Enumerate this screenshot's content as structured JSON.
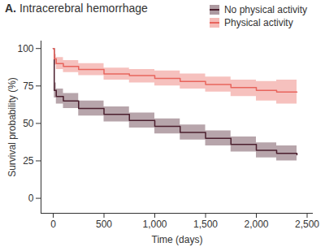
{
  "chart_data": {
    "type": "survival",
    "title": "A. Intracerebral hemorrhage",
    "x_label": "Time (days)",
    "y_label": "Survival probability (%)",
    "x": [
      0,
      10,
      30,
      100,
      250,
      500,
      750,
      1000,
      1250,
      1500,
      1750,
      2000,
      2200,
      2400
    ],
    "series": [
      {
        "name": "No physical activity",
        "color": "#4b1f2e",
        "values": [
          100,
          72,
          68,
          65,
          60,
          56,
          52,
          48,
          44,
          40,
          36,
          32,
          30,
          29
        ],
        "lower": [
          100,
          67,
          63,
          60,
          55,
          51,
          47,
          43,
          39,
          35,
          31,
          27,
          25,
          24
        ],
        "upper": [
          100,
          77,
          73,
          70,
          65,
          61,
          57,
          53,
          49,
          45,
          41,
          37,
          35,
          35
        ]
      },
      {
        "name": "Physical activity",
        "color": "#e8655d",
        "values": [
          100,
          93,
          90,
          88,
          86,
          83,
          82,
          80,
          78,
          76,
          74,
          72,
          71,
          71
        ],
        "lower": [
          100,
          89,
          86,
          84,
          82,
          79,
          77,
          75,
          73,
          71,
          68,
          65,
          63,
          62
        ],
        "upper": [
          100,
          96,
          94,
          92,
          90,
          87,
          86,
          85,
          83,
          81,
          79,
          78,
          79,
          80
        ]
      }
    ],
    "xlim": [
      -120,
      2560
    ],
    "ylim": [
      -10,
      105
    ],
    "xticks": [
      0,
      500,
      {
        "value": 1000,
        "label": "1,000"
      },
      {
        "value": 1500,
        "label": "1,500"
      },
      {
        "value": 2000,
        "label": "2,000"
      },
      {
        "value": 2500,
        "label": "2,500"
      }
    ],
    "yticks": [
      0,
      25,
      50,
      75,
      100
    ],
    "grid": false,
    "legend": "top-right"
  }
}
